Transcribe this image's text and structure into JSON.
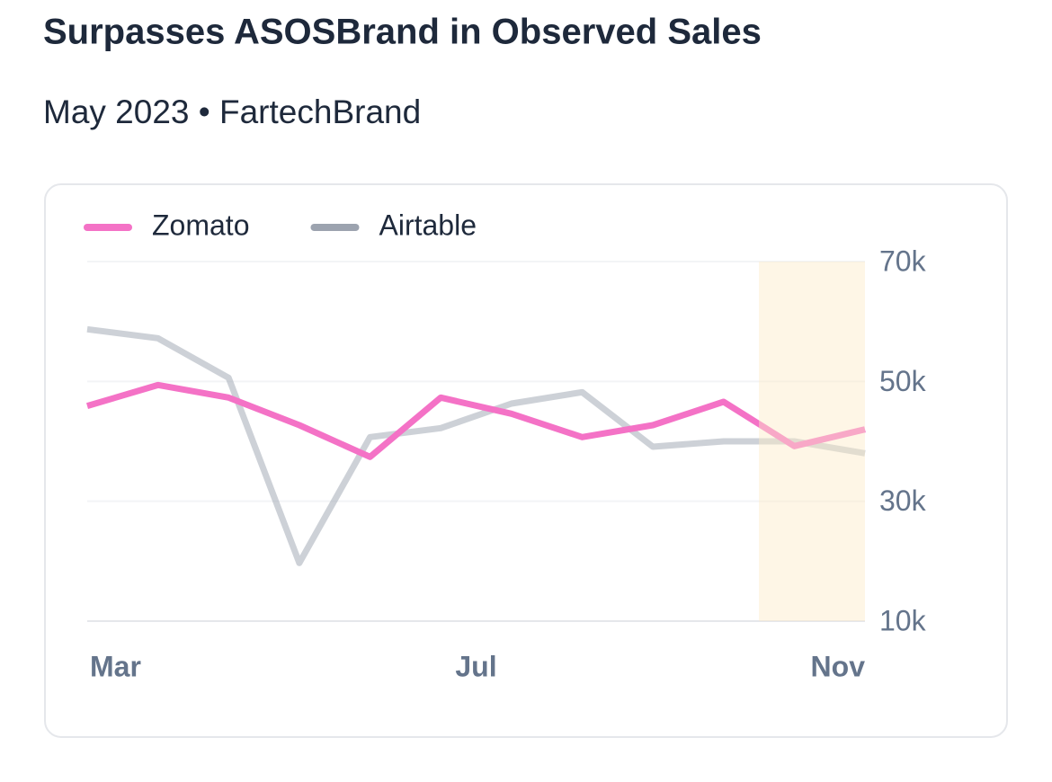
{
  "chart_data": {
    "type": "line",
    "title": "Surpasses ASOSBrand in Observed Sales",
    "subtitle": "May 2023 • FartechBrand",
    "x": [
      0,
      1,
      2,
      3,
      4,
      5,
      6,
      7,
      8,
      9,
      10,
      11
    ],
    "xlim": [
      0,
      11
    ],
    "xticks": [
      {
        "value": 0,
        "label": "Mar"
      },
      {
        "value": 5.5,
        "label": "Jul"
      },
      {
        "value": 11,
        "label": "Nov"
      }
    ],
    "ylim": [
      10000,
      70000
    ],
    "yticks": [
      {
        "value": 10000,
        "label": "10k"
      },
      {
        "value": 30000,
        "label": "30k"
      },
      {
        "value": 50000,
        "label": "50k"
      },
      {
        "value": 70000,
        "label": "70k"
      }
    ],
    "grid": true,
    "highlight_x": [
      9.5,
      11
    ],
    "series": [
      {
        "name": "Zomato",
        "color": "#f472c6",
        "values": [
          45900,
          49400,
          47300,
          42700,
          37400,
          47300,
          44600,
          40700,
          42700,
          46600,
          39200,
          42000
        ]
      },
      {
        "name": "Airtable",
        "color": "#9ca3af",
        "values": [
          58700,
          57200,
          50600,
          19700,
          40700,
          42200,
          46300,
          48200,
          39100,
          40000,
          40000,
          38000
        ]
      }
    ]
  }
}
